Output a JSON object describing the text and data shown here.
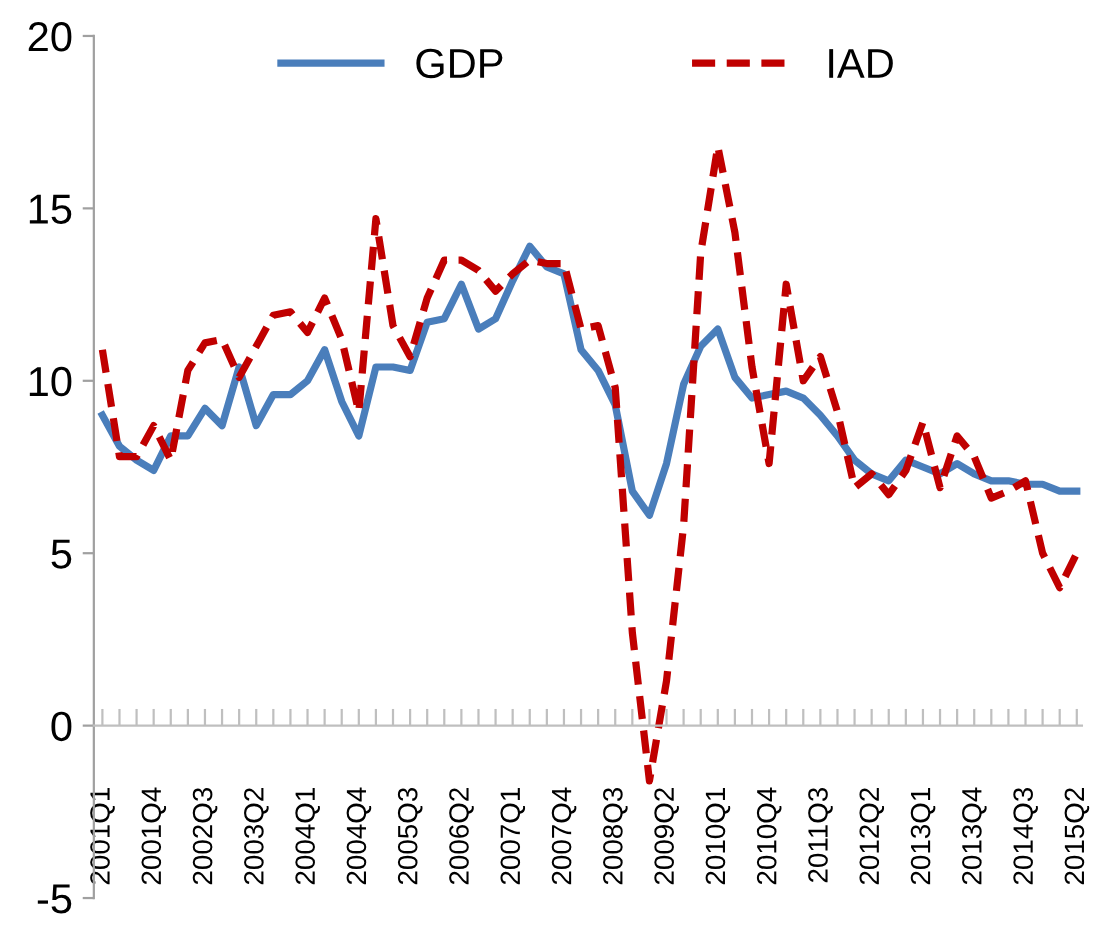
{
  "chart_data": {
    "type": "line",
    "categories": [
      "2001Q1",
      null,
      null,
      "2001Q4",
      null,
      null,
      "2002Q3",
      null,
      null,
      "2003Q2",
      null,
      null,
      "2004Q1",
      null,
      null,
      "2004Q4",
      null,
      null,
      "2005Q3",
      null,
      null,
      "2006Q2",
      null,
      null,
      "2007Q1",
      null,
      null,
      "2007Q4",
      null,
      null,
      "2008Q3",
      null,
      null,
      "2009Q2",
      null,
      null,
      "2010Q1",
      null,
      null,
      "2010Q4",
      null,
      null,
      "2011Q3",
      null,
      null,
      "2012Q2",
      null,
      null,
      "2013Q1",
      null,
      null,
      "2013Q4",
      null,
      null,
      "2014Q3",
      null,
      null,
      "2015Q2"
    ],
    "series": [
      {
        "name": "GDP",
        "color": "#4a7ebb",
        "line_style": "solid",
        "values": [
          9.0,
          8.1,
          7.7,
          7.4,
          8.4,
          8.4,
          9.2,
          8.7,
          10.4,
          8.7,
          9.6,
          9.6,
          10.0,
          10.9,
          9.4,
          8.4,
          10.4,
          10.4,
          10.3,
          11.7,
          11.8,
          12.8,
          11.5,
          11.8,
          12.9,
          13.9,
          13.3,
          13.1,
          10.9,
          10.3,
          9.3,
          6.8,
          6.1,
          7.6,
          9.9,
          11.0,
          11.5,
          10.1,
          9.5,
          9.6,
          9.7,
          9.5,
          9.0,
          8.4,
          7.7,
          7.3,
          7.1,
          7.7,
          7.5,
          7.3,
          7.6,
          7.3,
          7.1,
          7.1,
          7.0,
          7.0,
          6.8,
          6.8
        ]
      },
      {
        "name": "IAD",
        "color": "#c00000",
        "line_style": "dashed",
        "values": [
          10.9,
          7.8,
          7.8,
          8.7,
          7.7,
          10.3,
          11.1,
          11.2,
          10.1,
          11.0,
          11.9,
          12.0,
          11.4,
          12.4,
          11.2,
          9.1,
          14.7,
          11.6,
          10.7,
          12.4,
          13.5,
          13.5,
          13.2,
          12.6,
          13.1,
          13.5,
          13.4,
          13.4,
          11.5,
          11.6,
          9.8,
          2.7,
          -1.6,
          1.3,
          5.8,
          13.7,
          16.8,
          14.3,
          10.4,
          7.6,
          12.8,
          10.0,
          10.7,
          9.1,
          6.9,
          7.3,
          6.7,
          7.4,
          8.8,
          6.9,
          8.4,
          7.8,
          6.6,
          6.8,
          7.1,
          5.0,
          4.0,
          5.0
        ]
      }
    ],
    "ylim": [
      -5,
      20
    ],
    "yticks": [
      -5,
      0,
      5,
      10,
      15,
      20
    ],
    "legend": "top",
    "marker": "none",
    "grid": false
  }
}
